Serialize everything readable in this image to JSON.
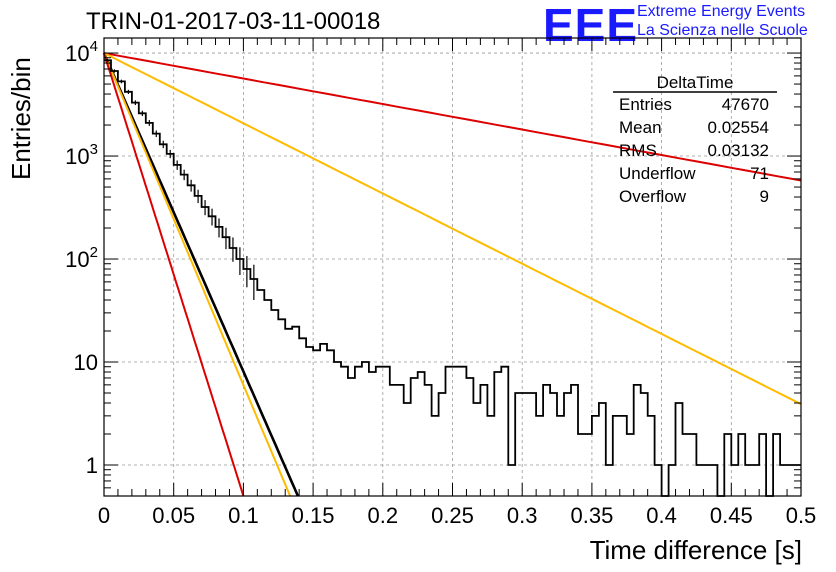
{
  "chart_data": {
    "type": "line",
    "title": "TRIN-01-2017-03-11-00018",
    "xlabel": "Time difference [s]",
    "ylabel": "Entries/bin",
    "xlim": [
      0,
      0.5
    ],
    "ylim": [
      0.5,
      14000
    ],
    "yscale": "log",
    "grid": true,
    "xticks": [
      "0",
      "0.05",
      "0.1",
      "0.15",
      "0.2",
      "0.25",
      "0.3",
      "0.35",
      "0.4",
      "0.45",
      "0.5"
    ],
    "ytick_labels": [
      {
        "value": 10000,
        "base": "10",
        "exp": "4"
      },
      {
        "value": 1000,
        "base": "10",
        "exp": "3"
      },
      {
        "value": 100,
        "base": "10",
        "exp": "2"
      },
      {
        "value": 10,
        "base": "10",
        "exp": ""
      },
      {
        "value": 1,
        "base": "1",
        "exp": ""
      }
    ],
    "histogram": {
      "bin_width": 0.005,
      "color": "#000000",
      "x": [
        0.0,
        0.005,
        0.01,
        0.015,
        0.02,
        0.025,
        0.03,
        0.035,
        0.04,
        0.045,
        0.05,
        0.055,
        0.06,
        0.065,
        0.07,
        0.075,
        0.08,
        0.085,
        0.09,
        0.095,
        0.1,
        0.105,
        0.11,
        0.115,
        0.12,
        0.125,
        0.13,
        0.135,
        0.14,
        0.145,
        0.15,
        0.155,
        0.16,
        0.165,
        0.17,
        0.175,
        0.18,
        0.185,
        0.19,
        0.195,
        0.2,
        0.205,
        0.21,
        0.215,
        0.22,
        0.225,
        0.23,
        0.235,
        0.24,
        0.245,
        0.25,
        0.255,
        0.26,
        0.265,
        0.27,
        0.275,
        0.28,
        0.285,
        0.29,
        0.295,
        0.3,
        0.305,
        0.31,
        0.315,
        0.32,
        0.325,
        0.33,
        0.335,
        0.34,
        0.345,
        0.35,
        0.355,
        0.36,
        0.365,
        0.37,
        0.375,
        0.38,
        0.385,
        0.39,
        0.395,
        0.4,
        0.405,
        0.41,
        0.415,
        0.42,
        0.425,
        0.43,
        0.435,
        0.44,
        0.445,
        0.45,
        0.455,
        0.46,
        0.465,
        0.47,
        0.475,
        0.48,
        0.485,
        0.49,
        0.495
      ],
      "y": [
        8500,
        6700,
        5300,
        4200,
        3300,
        2600,
        2100,
        1650,
        1300,
        1050,
        820,
        660,
        520,
        410,
        320,
        260,
        205,
        163,
        128,
        100,
        80,
        64,
        50,
        40,
        32,
        26,
        21,
        22,
        17,
        14,
        13,
        15,
        13,
        10,
        9,
        7,
        9,
        10,
        8,
        9,
        9,
        6,
        6,
        4,
        7,
        8,
        6,
        3,
        5,
        9,
        9,
        9,
        7,
        4,
        6,
        3,
        8,
        9,
        1,
        5,
        5,
        5,
        3,
        6,
        5,
        3,
        5,
        6,
        2,
        2,
        3,
        4,
        1,
        3,
        3,
        2,
        6,
        5,
        3,
        1,
        0,
        1,
        4,
        2,
        2,
        1,
        1,
        1,
        0,
        2,
        1,
        2,
        1,
        1,
        2,
        0,
        2,
        1,
        1,
        1
      ]
    },
    "fits": [
      {
        "color": "#000000",
        "y0": 10000,
        "slope_per_s": -71.2
      },
      {
        "color": "#dd0000",
        "y0": 10000,
        "slope_per_s": -5.7
      },
      {
        "color": "#ffbb00",
        "y0": 10000,
        "slope_per_s": -15.7
      },
      {
        "color": "#ffbb00",
        "y0": 10000,
        "slope_per_s": -74.2
      },
      {
        "color": "#dd0000",
        "y0": 10000,
        "slope_per_s": -99.0
      }
    ]
  },
  "stats_box": {
    "name": "DeltaTime",
    "rows": [
      {
        "label": "Entries",
        "value": "47670"
      },
      {
        "label": "Mean",
        "value": "0.02554"
      },
      {
        "label": "RMS",
        "value": "0.03132"
      },
      {
        "label": "Underflow",
        "value": "71"
      },
      {
        "label": "Overflow",
        "value": "9"
      }
    ]
  },
  "logo": {
    "mark": "EEE",
    "line1": "Extreme Energy Events",
    "line2": "La Scienza nelle Scuole"
  }
}
